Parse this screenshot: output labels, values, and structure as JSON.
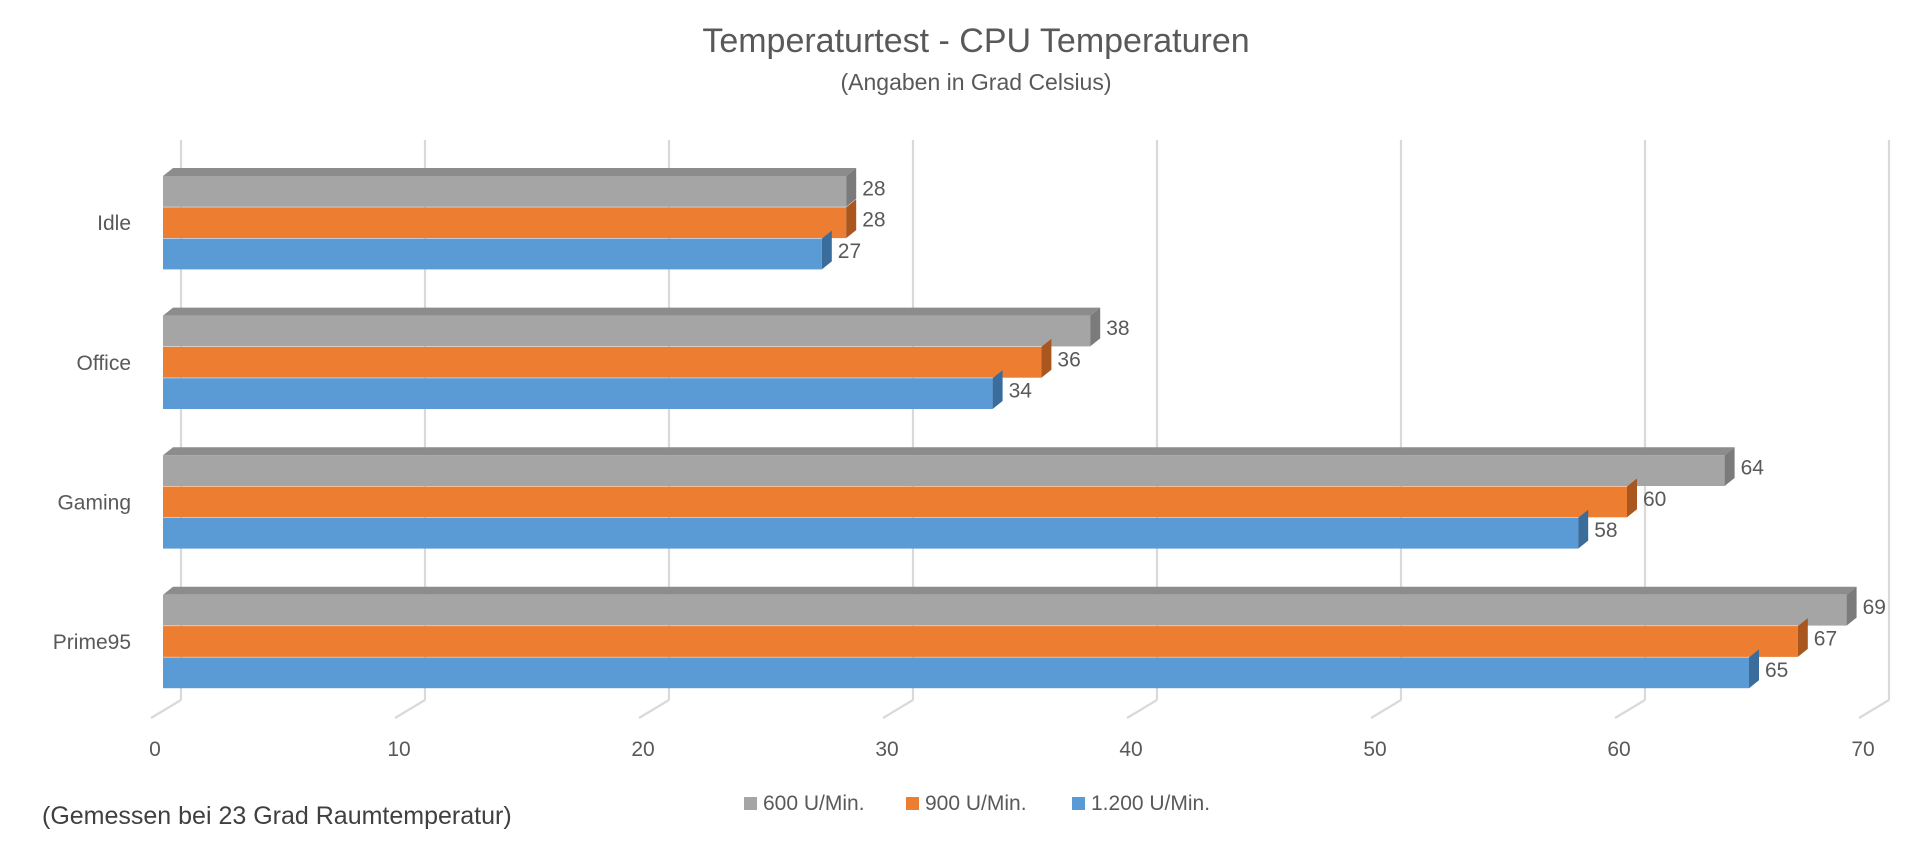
{
  "chart_data": {
    "type": "bar",
    "orientation": "horizontal",
    "title": "Temperaturtest - CPU Temperaturen",
    "subtitle": "(Angaben in Grad Celsius)",
    "footnote": "(Gemessen bei 23 Grad Raumtemperatur)",
    "categories": [
      "Idle",
      "Office",
      "Gaming",
      "Prime95"
    ],
    "series": [
      {
        "name": "600 U/Min.",
        "values": [
          28,
          38,
          64,
          69
        ],
        "color": "#A5A5A5",
        "side_color": "#7B7B7B",
        "top_color": "#8C8C8C"
      },
      {
        "name": "900 U/Min.",
        "values": [
          28,
          36,
          60,
          67
        ],
        "color": "#ED7D31",
        "side_color": "#A9561F"
      },
      {
        "name": "1.200 U/Min.",
        "values": [
          27,
          34,
          58,
          65
        ],
        "color": "#5B9BD5",
        "side_color": "#3A6D9C"
      }
    ],
    "xlim": [
      0,
      70
    ],
    "xticks": [
      "0",
      "10",
      "20",
      "30",
      "40",
      "50",
      "60",
      "70"
    ],
    "grid": true,
    "legend_position": "bottom",
    "colors": {
      "text": "#595959",
      "title": "#595959",
      "grid": "#D9D9D9"
    }
  }
}
